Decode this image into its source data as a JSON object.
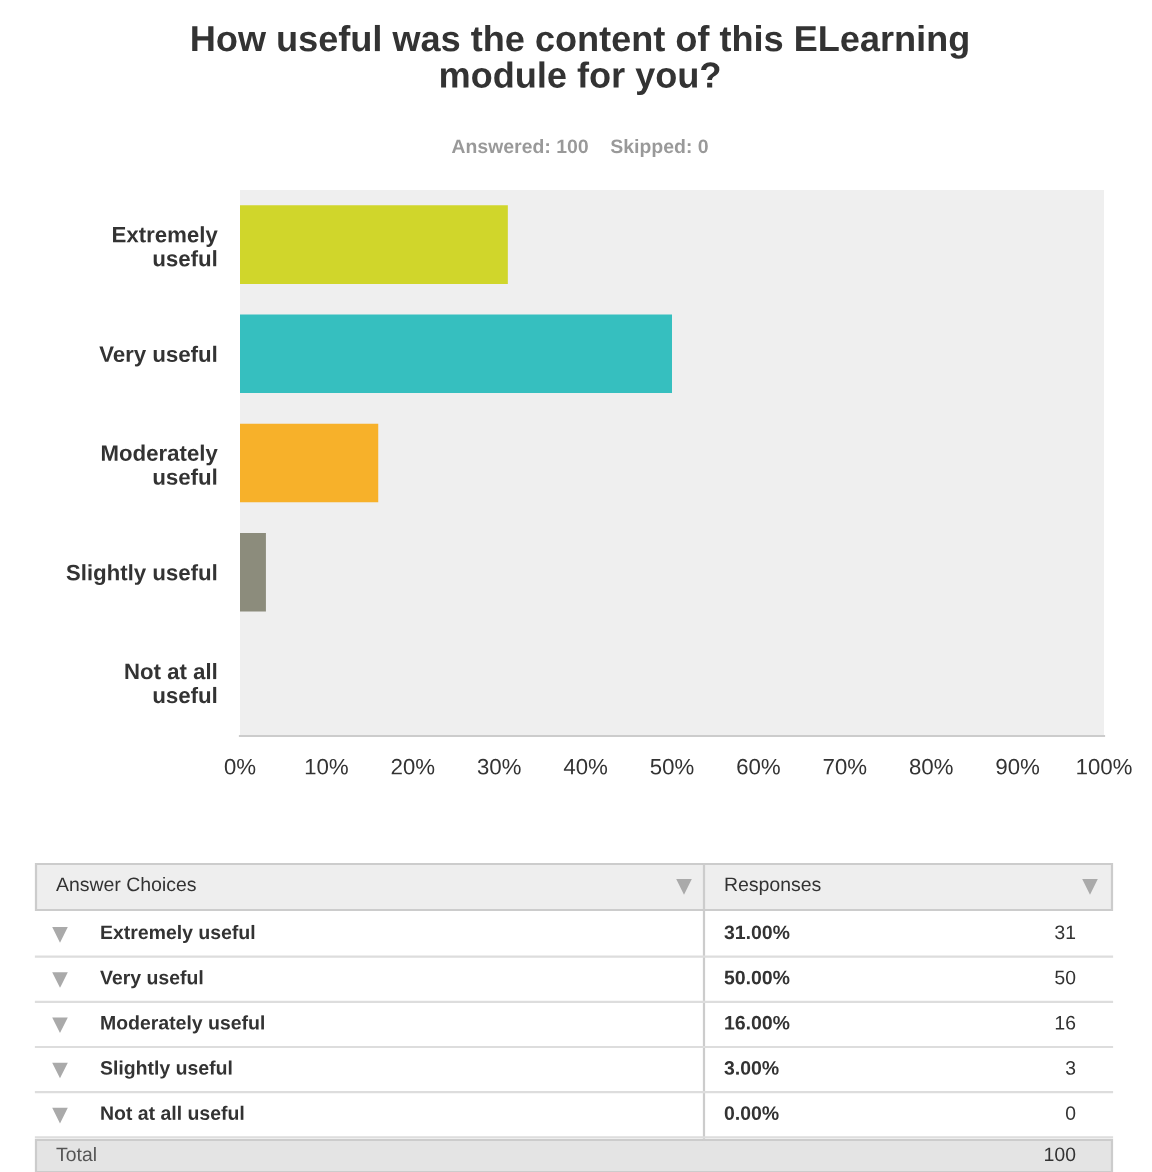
{
  "chart_data": {
    "type": "bar",
    "orientation": "horizontal",
    "title": "How useful was the content of this ELearning module for you?",
    "subtitle": "Answered: 100    Skipped: 0",
    "categories": [
      "Extremely useful",
      "Very useful",
      "Moderately useful",
      "Slightly useful",
      "Not at all useful"
    ],
    "values": [
      31,
      50,
      16,
      3,
      0
    ],
    "colors": [
      "#d0d62b",
      "#36bfbf",
      "#f7b12a",
      "#8c8c7c",
      "#999999"
    ],
    "xlim": [
      0,
      100
    ],
    "xticks": [
      {
        "value": 0,
        "label": "0%"
      },
      {
        "value": 10,
        "label": "10%"
      },
      {
        "value": 20,
        "label": "20%"
      },
      {
        "value": 30,
        "label": "30%"
      },
      {
        "value": 40,
        "label": "40%"
      },
      {
        "value": 50,
        "label": "50%"
      },
      {
        "value": 60,
        "label": "60%"
      },
      {
        "value": 70,
        "label": "70%"
      },
      {
        "value": 80,
        "label": "80%"
      },
      {
        "value": 90,
        "label": "90%"
      },
      {
        "value": 100,
        "label": "100%"
      }
    ],
    "annotations": [
      "Answer Choices",
      "Responses",
      "31.00%",
      "31",
      "50.00%",
      "50",
      "16.00%",
      "16",
      "3.00%",
      "3",
      "0.00%",
      "0",
      "Total",
      "100"
    ],
    "grid": false,
    "legend": false
  }
}
